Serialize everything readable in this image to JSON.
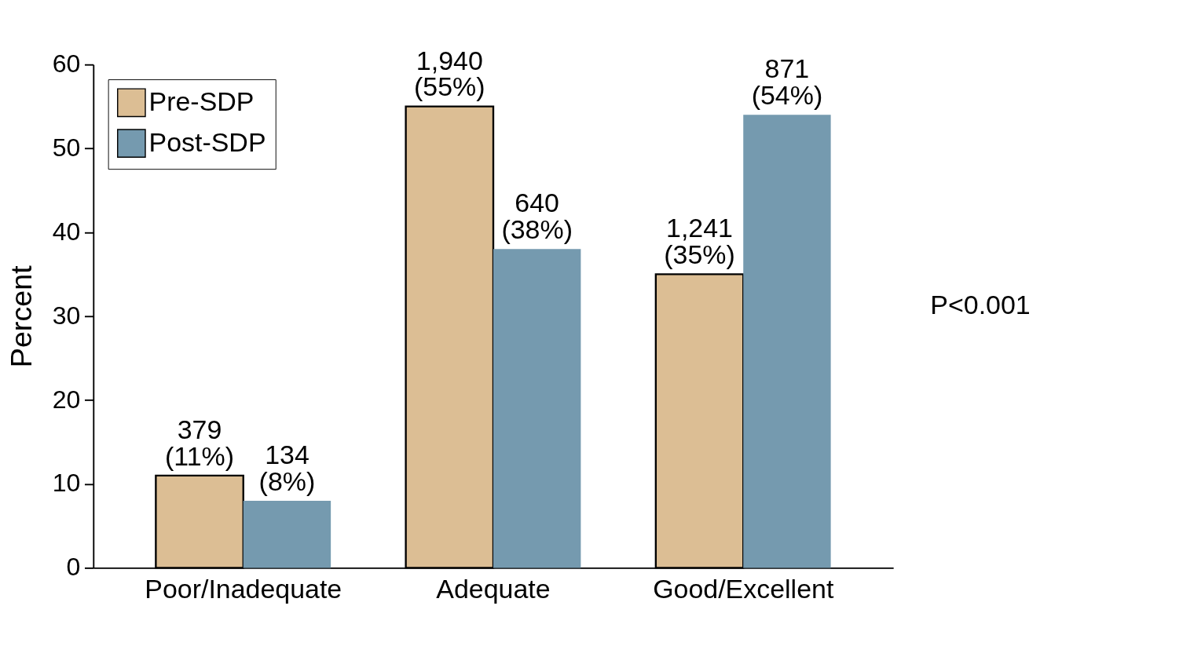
{
  "chart_data": {
    "type": "bar",
    "ylabel": "Percent",
    "categories": [
      "Poor/Inadequate",
      "Adequate",
      "Good/Excellent"
    ],
    "series": [
      {
        "name": "Pre-SDP",
        "color": "#dcbe94",
        "values": [
          11,
          55,
          35
        ],
        "value_labels": [
          "379\n(11%)",
          "1,940\n(55%)",
          "1,241\n(35%)"
        ]
      },
      {
        "name": "Post-SDP",
        "color": "#759aaf",
        "values": [
          8,
          38,
          54
        ],
        "value_labels": [
          "134\n(8%)",
          "640\n(38%)",
          "871\n(54%)"
        ]
      }
    ],
    "ylim": [
      0,
      60
    ],
    "yticks": [
      0,
      10,
      20,
      30,
      40,
      50,
      60
    ],
    "grid": false,
    "legend": "top left",
    "annotations": [
      "P<0.001"
    ]
  }
}
